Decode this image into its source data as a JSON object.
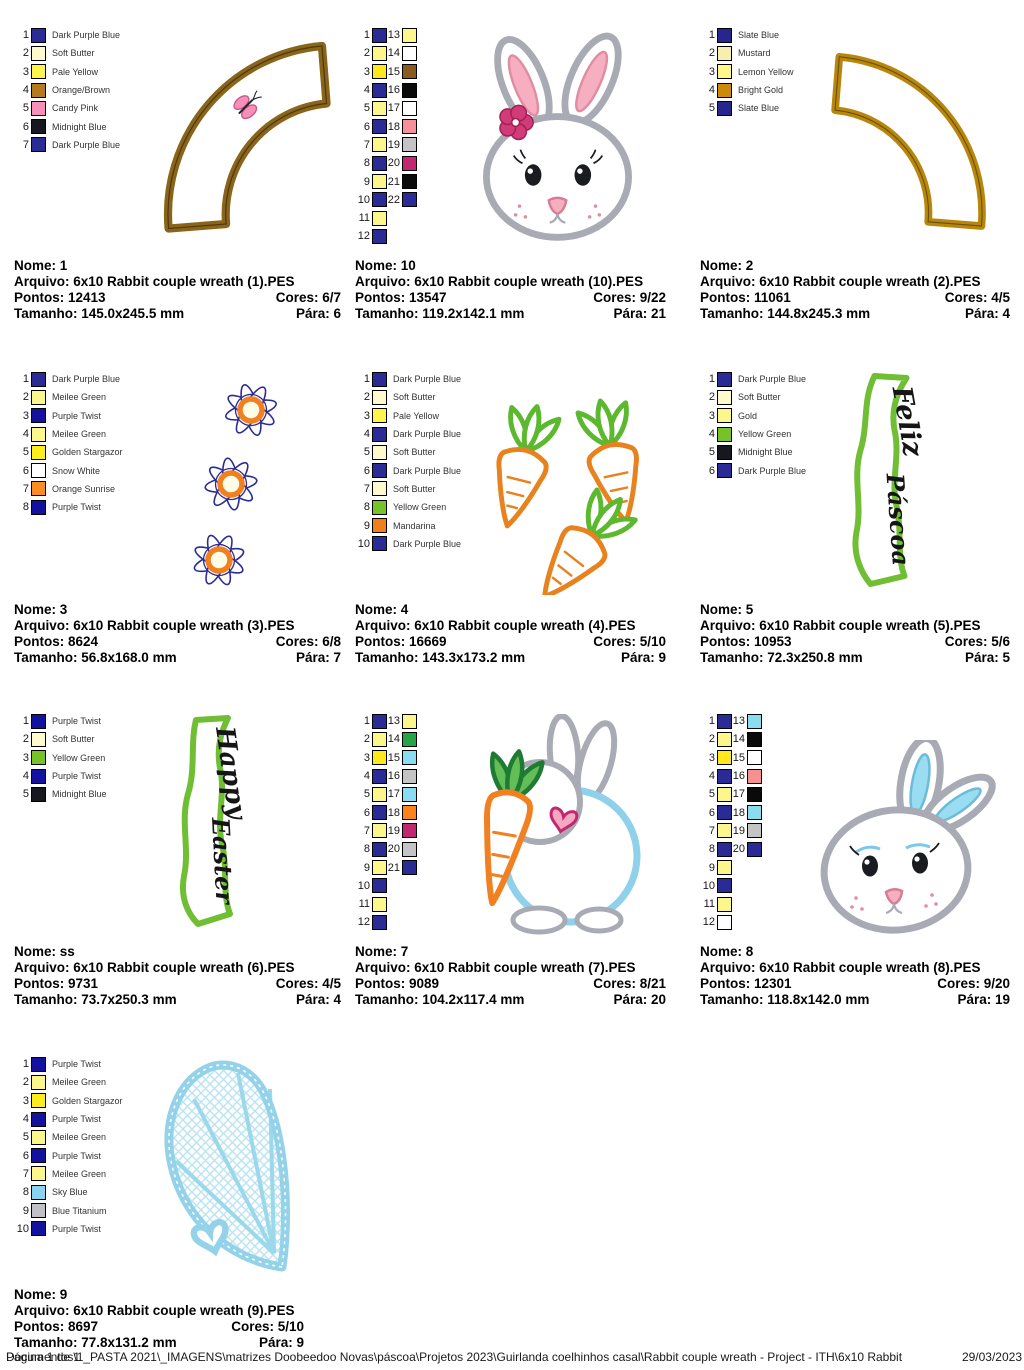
{
  "footer": {
    "page": "Página 1 de 1",
    "path": "Documentos\\1_PASTA 2021\\_IMAGENS\\matrizes Doobeedoo Novas\\páscoa\\Projetos 2023\\Guirlanda coelhinhos casal\\Rabbit couple wreath - Project - ITH\\6x10 Rabbit",
    "date": "29/03/2023"
  },
  "designs": [
    {
      "nome": "Nome: 1",
      "arquivo": "Arquivo: 6x10 Rabbit couple wreath (1).PES",
      "pontos": "Pontos: 12413",
      "cores": "Cores: 6/7",
      "tamanho": "Tamanho: 145.0x245.5 mm",
      "para": "Pára: 6",
      "colors": [
        {
          "n": 1,
          "hex": "#2B2B96",
          "name": "Dark Purple Blue"
        },
        {
          "n": 2,
          "hex": "#FFFACD",
          "name": "Soft Butter"
        },
        {
          "n": 3,
          "hex": "#FFF34D",
          "name": "Pale Yellow"
        },
        {
          "n": 4,
          "hex": "#B5791F",
          "name": "Orange/Brown"
        },
        {
          "n": 5,
          "hex": "#F78FB8",
          "name": "Candy Pink"
        },
        {
          "n": 6,
          "hex": "#17171F",
          "name": "Midnight Blue"
        },
        {
          "n": 7,
          "hex": "#2B2B96",
          "name": "Dark Purple Blue"
        }
      ]
    },
    {
      "nome": "Nome: 10",
      "arquivo": "Arquivo: 6x10 Rabbit couple wreath (10).PES",
      "pontos": "Pontos: 13547",
      "cores": "Cores: 9/22",
      "tamanho": "Tamanho: 119.2x142.1 mm",
      "para": "Pára: 21",
      "colors": [
        {
          "n": 1,
          "hex": "#2B2B96"
        },
        {
          "n": 2,
          "hex": "#FCF78C"
        },
        {
          "n": 3,
          "hex": "#FFE81E"
        },
        {
          "n": 4,
          "hex": "#2B2B96"
        },
        {
          "n": 5,
          "hex": "#FCF78C"
        },
        {
          "n": 6,
          "hex": "#2B2B96"
        },
        {
          "n": 7,
          "hex": "#FCF78C"
        },
        {
          "n": 8,
          "hex": "#2B2B96"
        },
        {
          "n": 9,
          "hex": "#FCF78C"
        },
        {
          "n": 10,
          "hex": "#2B2B96"
        },
        {
          "n": 11,
          "hex": "#FCF78C"
        },
        {
          "n": 12,
          "hex": "#2B2B96"
        }
      ],
      "colors2": [
        {
          "n": 13,
          "hex": "#FCF78C"
        },
        {
          "n": 14,
          "hex": "#FFFFFF"
        },
        {
          "n": 15,
          "hex": "#8A5A20"
        },
        {
          "n": 16,
          "hex": "#0A0A0A"
        },
        {
          "n": 17,
          "hex": "#FFFFFF"
        },
        {
          "n": 18,
          "hex": "#F7909C"
        },
        {
          "n": 19,
          "hex": "#C4C4C4"
        },
        {
          "n": 20,
          "hex": "#C22870"
        },
        {
          "n": 21,
          "hex": "#0A0A0A"
        },
        {
          "n": 22,
          "hex": "#2B2B96"
        }
      ]
    },
    {
      "nome": "Nome: 2",
      "arquivo": "Arquivo: 6x10 Rabbit couple wreath (2).PES",
      "pontos": "Pontos: 11061",
      "cores": "Cores: 4/5",
      "tamanho": "Tamanho: 144.8x245.3 mm",
      "para": "Pára: 4",
      "colors": [
        {
          "n": 1,
          "hex": "#26268C",
          "name": "Slate Blue"
        },
        {
          "n": 2,
          "hex": "#F7EFB2",
          "name": "Mustard"
        },
        {
          "n": 3,
          "hex": "#FFF78C",
          "name": "Lemon Yellow"
        },
        {
          "n": 4,
          "hex": "#CC8A0A",
          "name": "Bright Gold"
        },
        {
          "n": 5,
          "hex": "#26268C",
          "name": "Slate Blue"
        }
      ]
    },
    {
      "nome": "Nome: 3",
      "arquivo": "Arquivo: 6x10 Rabbit couple wreath (3).PES",
      "pontos": "Pontos: 8624",
      "cores": "Cores: 6/8",
      "tamanho": "Tamanho: 56.8x168.0 mm",
      "para": "Pára: 7",
      "colors": [
        {
          "n": 1,
          "hex": "#2B2B96",
          "name": "Dark Purple Blue"
        },
        {
          "n": 2,
          "hex": "#FCF78C",
          "name": "Meilee Green"
        },
        {
          "n": 3,
          "hex": "#12129E",
          "name": "Purple Twist"
        },
        {
          "n": 4,
          "hex": "#FCF78C",
          "name": "Meilee Green"
        },
        {
          "n": 5,
          "hex": "#FFEE1E",
          "name": "Golden Stargazor"
        },
        {
          "n": 6,
          "hex": "#FFFFFF",
          "name": "Snow White"
        },
        {
          "n": 7,
          "hex": "#FB8C22",
          "name": "Orange Sunrise"
        },
        {
          "n": 8,
          "hex": "#12129E",
          "name": "Purple Twist"
        }
      ]
    },
    {
      "nome": "Nome: 4",
      "arquivo": "Arquivo: 6x10 Rabbit couple wreath (4).PES",
      "pontos": "Pontos: 16669",
      "cores": "Cores: 5/10",
      "tamanho": "Tamanho: 143.3x173.2 mm",
      "para": "Pára: 9",
      "colors": [
        {
          "n": 1,
          "hex": "#2B2B96",
          "name": "Dark Purple Blue"
        },
        {
          "n": 2,
          "hex": "#FFFACD",
          "name": "Soft Butter"
        },
        {
          "n": 3,
          "hex": "#FFF34D",
          "name": "Pale Yellow"
        },
        {
          "n": 4,
          "hex": "#2B2B96",
          "name": "Dark Purple Blue"
        },
        {
          "n": 5,
          "hex": "#FFFACD",
          "name": "Soft Butter"
        },
        {
          "n": 6,
          "hex": "#2B2B96",
          "name": "Dark Purple Blue"
        },
        {
          "n": 7,
          "hex": "#FFFACD",
          "name": "Soft Butter"
        },
        {
          "n": 8,
          "hex": "#77C22B",
          "name": "Yellow Green"
        },
        {
          "n": 9,
          "hex": "#F0801E",
          "name": "Mandarina"
        },
        {
          "n": 10,
          "hex": "#2B2B96",
          "name": "Dark Purple Blue"
        }
      ]
    },
    {
      "nome": "Nome: 5",
      "arquivo": "Arquivo: 6x10 Rabbit couple wreath (5).PES",
      "pontos": "Pontos: 10953",
      "cores": "Cores: 5/6",
      "tamanho": "Tamanho: 72.3x250.8 mm",
      "para": "Pára: 5",
      "word1": "Feliz",
      "word2": "Páscoa",
      "colors": [
        {
          "n": 1,
          "hex": "#2B2B96",
          "name": "Dark Purple Blue"
        },
        {
          "n": 2,
          "hex": "#FFFACD",
          "name": "Soft Butter"
        },
        {
          "n": 3,
          "hex": "#FCF78C",
          "name": "Gold"
        },
        {
          "n": 4,
          "hex": "#77C22B",
          "name": "Yellow Green"
        },
        {
          "n": 5,
          "hex": "#17171F",
          "name": "Midnight Blue"
        },
        {
          "n": 6,
          "hex": "#2B2B96",
          "name": "Dark Purple Blue"
        }
      ]
    },
    {
      "nome": "Nome: ss",
      "arquivo": "Arquivo: 6x10 Rabbit couple wreath (6).PES",
      "pontos": "Pontos: 9731",
      "cores": "Cores: 4/5",
      "tamanho": "Tamanho: 73.7x250.3 mm",
      "para": "Pára: 4",
      "word1": "Happy",
      "word2": "Easter",
      "colors": [
        {
          "n": 1,
          "hex": "#12129E",
          "name": "Purple Twist"
        },
        {
          "n": 2,
          "hex": "#FFFACD",
          "name": "Soft Butter"
        },
        {
          "n": 3,
          "hex": "#77C22B",
          "name": "Yellow Green"
        },
        {
          "n": 4,
          "hex": "#12129E",
          "name": "Purple Twist"
        },
        {
          "n": 5,
          "hex": "#17171F",
          "name": "Midnight Blue"
        }
      ]
    },
    {
      "nome": "Nome: 7",
      "arquivo": "Arquivo: 6x10 Rabbit couple wreath (7).PES",
      "pontos": "Pontos: 9089",
      "cores": "Cores: 8/21",
      "tamanho": "Tamanho: 104.2x117.4 mm",
      "para": "Pára: 20",
      "colors": [
        {
          "n": 1,
          "hex": "#2B2B96"
        },
        {
          "n": 2,
          "hex": "#FCF78C"
        },
        {
          "n": 3,
          "hex": "#FFE81E"
        },
        {
          "n": 4,
          "hex": "#2B2B96"
        },
        {
          "n": 5,
          "hex": "#FCF78C"
        },
        {
          "n": 6,
          "hex": "#2B2B96"
        },
        {
          "n": 7,
          "hex": "#FCF78C"
        },
        {
          "n": 8,
          "hex": "#2B2B96"
        },
        {
          "n": 9,
          "hex": "#FCF78C"
        },
        {
          "n": 10,
          "hex": "#2B2B96"
        },
        {
          "n": 11,
          "hex": "#FCF78C"
        },
        {
          "n": 12,
          "hex": "#2B2B96"
        }
      ],
      "colors2": [
        {
          "n": 13,
          "hex": "#FCF78C"
        },
        {
          "n": 14,
          "hex": "#28A448"
        },
        {
          "n": 15,
          "hex": "#8ADCF0"
        },
        {
          "n": 16,
          "hex": "#C4C4C4"
        },
        {
          "n": 17,
          "hex": "#8ADCF0"
        },
        {
          "n": 18,
          "hex": "#FB831E"
        },
        {
          "n": 19,
          "hex": "#C22870"
        },
        {
          "n": 20,
          "hex": "#C4C4C4"
        },
        {
          "n": 21,
          "hex": "#2B2B96"
        }
      ]
    },
    {
      "nome": "Nome: 8",
      "arquivo": "Arquivo: 6x10 Rabbit couple wreath (8).PES",
      "pontos": "Pontos: 12301",
      "cores": "Cores: 9/20",
      "tamanho": "Tamanho: 118.8x142.0 mm",
      "para": "Pára: 19",
      "colors": [
        {
          "n": 1,
          "hex": "#2B2B96"
        },
        {
          "n": 2,
          "hex": "#FCF78C"
        },
        {
          "n": 3,
          "hex": "#FFE81E"
        },
        {
          "n": 4,
          "hex": "#2B2B96"
        },
        {
          "n": 5,
          "hex": "#FCF78C"
        },
        {
          "n": 6,
          "hex": "#2B2B96"
        },
        {
          "n": 7,
          "hex": "#FCF78C"
        },
        {
          "n": 8,
          "hex": "#2B2B96"
        },
        {
          "n": 9,
          "hex": "#FCF78C"
        },
        {
          "n": 10,
          "hex": "#2B2B96"
        },
        {
          "n": 11,
          "hex": "#FCF78C"
        },
        {
          "n": 12,
          "hex": "#FFFFFF"
        }
      ],
      "colors2": [
        {
          "n": 13,
          "hex": "#8ADCF0"
        },
        {
          "n": 14,
          "hex": "#0A0A0A"
        },
        {
          "n": 15,
          "hex": "#FFFFFF"
        },
        {
          "n": 16,
          "hex": "#F79090"
        },
        {
          "n": 17,
          "hex": "#0A0A0A"
        },
        {
          "n": 18,
          "hex": "#8ADCF0"
        },
        {
          "n": 19,
          "hex": "#C4C4C4"
        },
        {
          "n": 20,
          "hex": "#2B2B96"
        }
      ]
    },
    {
      "nome": "Nome: 9",
      "arquivo": "Arquivo: 6x10 Rabbit couple wreath (9).PES",
      "pontos": "Pontos: 8697",
      "cores": "Cores: 5/10",
      "tamanho": "Tamanho: 77.8x131.2 mm",
      "para": "Pára: 9",
      "colors": [
        {
          "n": 1,
          "hex": "#12129E",
          "name": "Purple Twist"
        },
        {
          "n": 2,
          "hex": "#FCF78C",
          "name": "Meilee Green"
        },
        {
          "n": 3,
          "hex": "#FFEE1E",
          "name": "Golden Stargazor"
        },
        {
          "n": 4,
          "hex": "#12129E",
          "name": "Purple Twist"
        },
        {
          "n": 5,
          "hex": "#FCF78C",
          "name": "Meilee Green"
        },
        {
          "n": 6,
          "hex": "#12129E",
          "name": "Purple Twist"
        },
        {
          "n": 7,
          "hex": "#FCF78C",
          "name": "Meilee Green"
        },
        {
          "n": 8,
          "hex": "#8AD4F0",
          "name": "Sky Blue"
        },
        {
          "n": 9,
          "hex": "#C0C0C8",
          "name": "Blue Titanium"
        },
        {
          "n": 10,
          "hex": "#12129E",
          "name": "Purple Twist"
        }
      ]
    }
  ]
}
